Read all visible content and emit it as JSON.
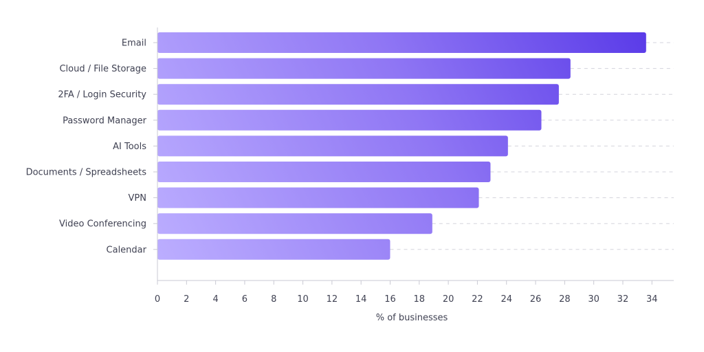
{
  "chart_data": {
    "type": "bar",
    "orientation": "horizontal",
    "categories": [
      "Email",
      "Cloud / File Storage",
      "2FA / Login Security",
      "Password Manager",
      "AI Tools",
      "Documents / Spreadsheets",
      "VPN",
      "Video Conferencing",
      "Calendar"
    ],
    "values": [
      33.6,
      28.4,
      27.6,
      26.4,
      24.1,
      22.9,
      22.1,
      18.9,
      16.0
    ],
    "xlabel": "% of businesses",
    "ylabel": "",
    "xlim": [
      0,
      35.5
    ],
    "xticks": [
      0,
      2,
      4,
      6,
      8,
      10,
      12,
      14,
      16,
      18,
      20,
      22,
      24,
      26,
      28,
      30,
      32,
      34
    ],
    "grid": "dashed guide lines to the right of each bar",
    "colors": {
      "bar_light": "#bcaeff",
      "bar_mid": "#8f76f4",
      "bar_dark": "#5a3be8",
      "axis": "#c9c9d3",
      "grid": "#d3d3dc",
      "text": "#3f4152"
    }
  }
}
